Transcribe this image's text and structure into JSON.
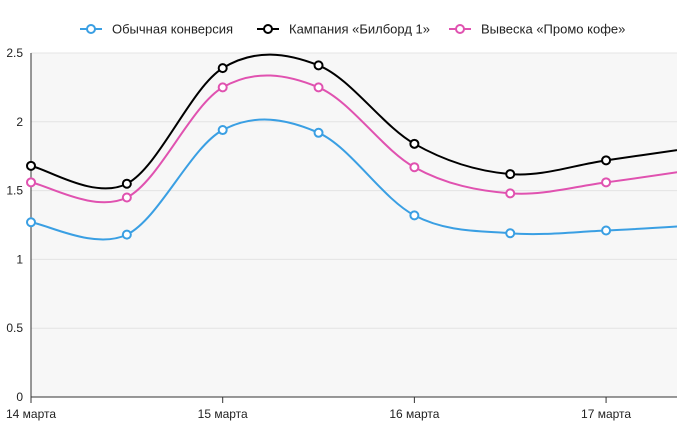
{
  "chart_data": {
    "type": "line",
    "title": "",
    "xlabel": "",
    "ylabel": "",
    "x_ticks": [
      "14 марта",
      "15 марта",
      "16 марта",
      "17 марта"
    ],
    "x": [
      0,
      0.5,
      1,
      1.5,
      2,
      2.5,
      3,
      3.5
    ],
    "xlim": [
      0,
      3.37
    ],
    "ylim": [
      0,
      2.5
    ],
    "y_ticks": [
      0,
      0.5,
      1,
      1.5,
      2,
      2.5
    ],
    "grid": true,
    "legend": "top-center",
    "series": [
      {
        "name": "Обычная конверсия",
        "color": "#3a9fe3",
        "values": [
          1.27,
          1.18,
          1.94,
          1.92,
          1.32,
          1.19,
          1.21,
          1.25
        ]
      },
      {
        "name": "Кампания «Билборд 1»",
        "color": "#000000",
        "values": [
          1.68,
          1.55,
          2.39,
          2.41,
          1.84,
          1.62,
          1.72,
          1.82
        ]
      },
      {
        "name": "Вывеска «Промо кофе»",
        "color": "#e052b0",
        "values": [
          1.56,
          1.45,
          2.25,
          2.25,
          1.67,
          1.48,
          1.56,
          1.66
        ]
      }
    ]
  }
}
